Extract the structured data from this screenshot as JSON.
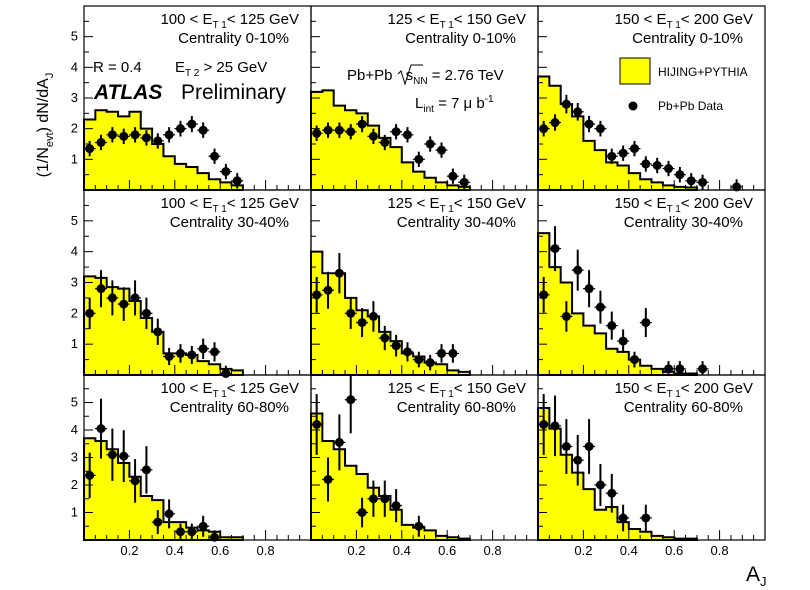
{
  "page": {
    "experiment": "ATLAS",
    "status": "Preliminary",
    "y_axis_title_main": "(1/N",
    "y_axis_title_sub": "evt",
    "y_axis_title_rest": ") dN/dA",
    "y_axis_title_sub2": "J",
    "x_axis_title_main": "A",
    "x_axis_title_sub": "J",
    "jet_radius": "R = 0.4",
    "et2_cut_main": "E",
    "et2_cut_sub": "T 2",
    "et2_cut_rest": " > 25 GeV",
    "system_main": "Pb+Pb ",
    "system_sqrt": "s",
    "system_sub": "NN",
    "system_rest": " = 2.76 TeV",
    "lumi_main": "L",
    "lumi_sub": "int",
    "lumi_rest": " = 7 μ b",
    "lumi_sup": "-1",
    "legend_mc": "HIJING+PYTHIA",
    "legend_data": "Pb+Pb Data",
    "mc_fill_color": "#ffff00",
    "et_bins": [
      {
        "pre": "100 < E",
        "sub": "T 1",
        "post": "< 125 GeV"
      },
      {
        "pre": "125 < E",
        "sub": "T 1",
        "post": "< 150 GeV"
      },
      {
        "pre": "150 < E",
        "sub": "T 1",
        "post": "< 200 GeV"
      }
    ],
    "centralities": [
      "Centrality 0-10%",
      "Centrality 30-40%",
      "Centrality 60-80%"
    ]
  },
  "chart_data": {
    "type": "histogram-grid",
    "x_range": [
      0,
      1
    ],
    "y_range": [
      0,
      6
    ],
    "x_ticks": [
      "0.2",
      "0.4",
      "0.6",
      "0.8"
    ],
    "y_ticks": [
      "1",
      "2",
      "3",
      "4",
      "5"
    ],
    "xlabel": "A_J",
    "ylabel": "(1/N_evt) dN/dA_J",
    "mc_bin_edges": [
      0,
      0.05,
      0.1,
      0.15,
      0.2,
      0.25,
      0.3,
      0.35,
      0.4,
      0.45,
      0.5,
      0.55,
      0.6,
      0.65,
      0.7
    ],
    "panels": [
      {
        "row": 0,
        "col": 0,
        "mc": [
          2.3,
          2.6,
          2.55,
          2.4,
          2.55,
          2.0,
          1.5,
          1.1,
          0.85,
          0.75,
          0.55,
          0.35,
          0.25,
          0.15
        ],
        "data": [
          [
            0.025,
            1.35
          ],
          [
            0.075,
            1.55
          ],
          [
            0.125,
            1.8
          ],
          [
            0.175,
            1.75
          ],
          [
            0.225,
            1.8
          ],
          [
            0.275,
            1.7
          ],
          [
            0.325,
            1.6
          ],
          [
            0.375,
            1.8
          ],
          [
            0.425,
            2.0
          ],
          [
            0.475,
            2.15
          ],
          [
            0.525,
            1.95
          ],
          [
            0.575,
            1.1
          ],
          [
            0.625,
            0.6
          ],
          [
            0.675,
            0.3
          ]
        ]
      },
      {
        "row": 0,
        "col": 1,
        "mc": [
          3.2,
          3.25,
          2.75,
          2.6,
          2.5,
          2.1,
          1.7,
          1.4,
          0.9,
          0.6,
          0.4,
          0.25,
          0.15,
          0.1
        ],
        "data": [
          [
            0.025,
            1.85
          ],
          [
            0.075,
            1.95
          ],
          [
            0.125,
            1.95
          ],
          [
            0.175,
            1.9
          ],
          [
            0.225,
            2.15
          ],
          [
            0.275,
            1.75
          ],
          [
            0.325,
            1.55
          ],
          [
            0.375,
            1.9
          ],
          [
            0.425,
            1.8
          ],
          [
            0.475,
            1.0
          ],
          [
            0.525,
            1.5
          ],
          [
            0.575,
            1.3
          ],
          [
            0.625,
            0.45
          ],
          [
            0.675,
            0.25
          ]
        ]
      },
      {
        "row": 0,
        "col": 2,
        "mc": [
          3.7,
          3.4,
          2.8,
          2.4,
          1.6,
          1.3,
          0.9,
          0.8,
          0.55,
          0.35,
          0.25,
          0.15,
          0.1,
          0.08
        ],
        "data": [
          [
            0.025,
            2.0
          ],
          [
            0.075,
            2.2
          ],
          [
            0.125,
            2.8
          ],
          [
            0.175,
            2.55
          ],
          [
            0.225,
            2.15
          ],
          [
            0.275,
            2.0
          ],
          [
            0.325,
            1.1
          ],
          [
            0.375,
            1.2
          ],
          [
            0.425,
            1.35
          ],
          [
            0.475,
            0.85
          ],
          [
            0.525,
            0.8
          ],
          [
            0.575,
            0.7
          ],
          [
            0.625,
            0.5
          ],
          [
            0.675,
            0.3
          ],
          [
            0.725,
            0.25
          ],
          [
            0.875,
            0.1
          ]
        ]
      },
      {
        "row": 1,
        "col": 0,
        "mc": [
          3.2,
          3.15,
          2.85,
          2.8,
          2.4,
          1.85,
          1.4,
          0.7,
          0.7,
          0.65,
          0.45,
          0.35,
          0.2,
          0.15
        ],
        "data": [
          [
            0.025,
            2.0
          ],
          [
            0.075,
            2.8
          ],
          [
            0.125,
            2.5
          ],
          [
            0.175,
            2.3
          ],
          [
            0.225,
            2.5
          ],
          [
            0.275,
            2.0
          ],
          [
            0.325,
            1.4
          ],
          [
            0.375,
            0.6
          ],
          [
            0.425,
            0.7
          ],
          [
            0.475,
            0.65
          ],
          [
            0.525,
            0.85
          ],
          [
            0.575,
            0.75
          ],
          [
            0.625,
            0.05
          ]
        ]
      },
      {
        "row": 1,
        "col": 1,
        "mc": [
          4.0,
          3.3,
          3.3,
          2.5,
          2.1,
          1.9,
          1.4,
          1.1,
          0.7,
          0.6,
          0.4,
          0.35,
          0.15,
          0.1
        ],
        "data": [
          [
            0.025,
            2.6
          ],
          [
            0.075,
            2.75
          ],
          [
            0.125,
            3.3
          ],
          [
            0.175,
            2.0
          ],
          [
            0.225,
            1.7
          ],
          [
            0.275,
            1.9
          ],
          [
            0.325,
            1.2
          ],
          [
            0.375,
            0.95
          ],
          [
            0.425,
            0.75
          ],
          [
            0.475,
            0.5
          ],
          [
            0.525,
            0.4
          ],
          [
            0.575,
            0.7
          ],
          [
            0.625,
            0.7
          ]
        ]
      },
      {
        "row": 1,
        "col": 2,
        "mc": [
          4.6,
          3.5,
          3.0,
          2.0,
          1.6,
          1.35,
          0.85,
          0.75,
          0.5,
          0.3,
          0.2,
          0.1,
          0.05,
          0.05
        ],
        "data": [
          [
            0.025,
            2.6
          ],
          [
            0.075,
            4.1
          ],
          [
            0.125,
            1.9
          ],
          [
            0.175,
            3.4
          ],
          [
            0.225,
            2.8
          ],
          [
            0.275,
            2.2
          ],
          [
            0.325,
            1.6
          ],
          [
            0.375,
            1.1
          ],
          [
            0.425,
            0.5
          ],
          [
            0.475,
            1.7
          ],
          [
            0.575,
            0.2
          ],
          [
            0.625,
            0.2
          ],
          [
            0.725,
            0.2
          ]
        ]
      },
      {
        "row": 2,
        "col": 0,
        "mc": [
          3.7,
          3.6,
          3.3,
          2.8,
          2.3,
          1.6,
          1.45,
          0.65,
          0.65,
          0.45,
          0.35,
          0.3,
          0.1,
          0.1
        ],
        "data": [
          [
            0.025,
            2.35
          ],
          [
            0.075,
            4.05
          ],
          [
            0.125,
            3.1
          ],
          [
            0.175,
            3.05
          ],
          [
            0.225,
            2.15
          ],
          [
            0.275,
            2.55
          ],
          [
            0.325,
            0.65
          ],
          [
            0.375,
            0.95
          ],
          [
            0.425,
            0.3
          ],
          [
            0.475,
            0.3
          ],
          [
            0.525,
            0.5
          ],
          [
            0.575,
            0.1
          ]
        ]
      },
      {
        "row": 2,
        "col": 1,
        "mc": [
          4.6,
          3.6,
          3.3,
          2.7,
          2.4,
          1.9,
          1.6,
          1.1,
          0.55,
          0.45,
          0.35,
          0.15,
          0.1,
          0.05
        ],
        "data": [
          [
            0.025,
            4.2
          ],
          [
            0.075,
            2.2
          ],
          [
            0.125,
            3.55
          ],
          [
            0.175,
            5.1
          ],
          [
            0.225,
            1.0
          ],
          [
            0.275,
            1.5
          ],
          [
            0.325,
            1.5
          ],
          [
            0.375,
            1.25
          ],
          [
            0.475,
            0.5
          ]
        ]
      },
      {
        "row": 2,
        "col": 2,
        "mc": [
          4.8,
          4.05,
          3.1,
          2.45,
          1.85,
          1.1,
          1.2,
          0.65,
          0.4,
          0.3,
          0.15,
          0.1,
          0.05,
          0.05
        ],
        "data": [
          [
            0.025,
            4.2
          ],
          [
            0.075,
            4.15
          ],
          [
            0.125,
            3.4
          ],
          [
            0.175,
            2.9
          ],
          [
            0.225,
            3.4
          ],
          [
            0.275,
            2.0
          ],
          [
            0.325,
            1.7
          ],
          [
            0.375,
            0.8
          ],
          [
            0.475,
            0.8
          ]
        ]
      }
    ]
  }
}
